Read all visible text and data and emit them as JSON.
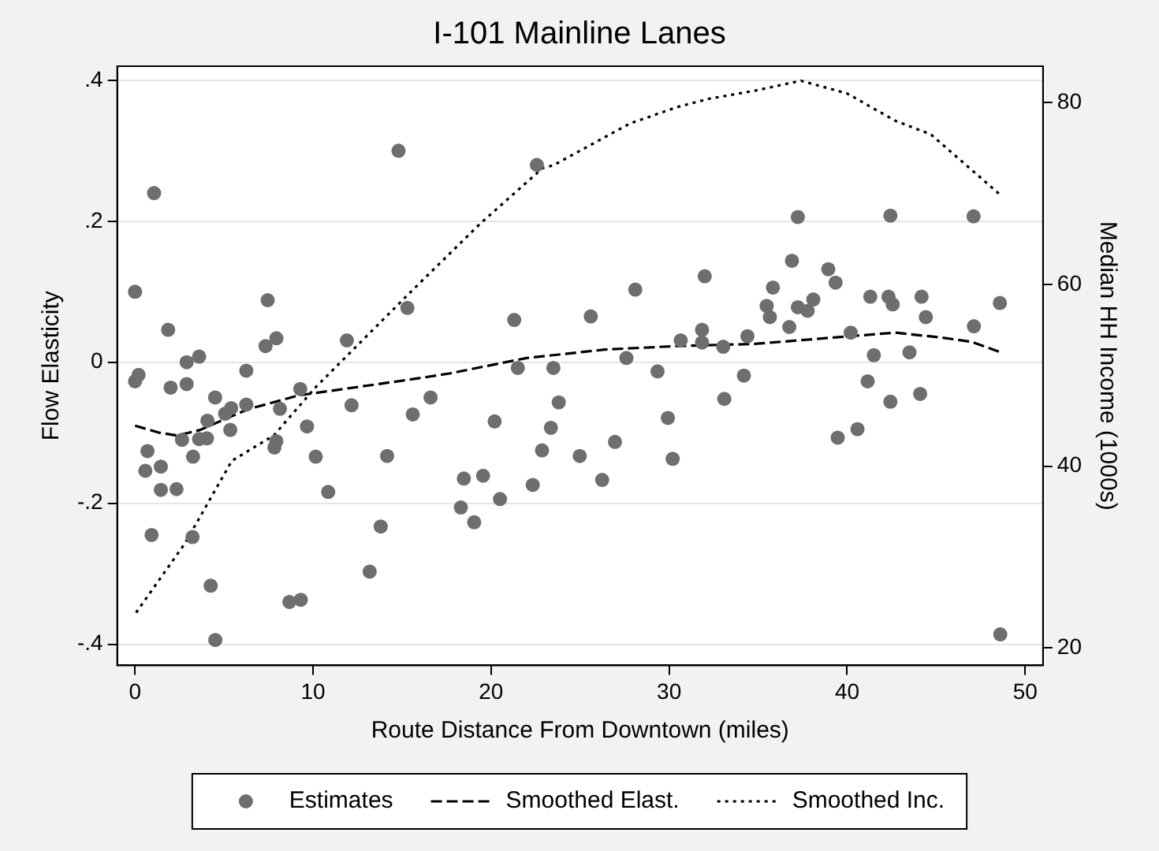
{
  "chart_data": {
    "type": "scatter",
    "title": "I-101 Mainline Lanes",
    "xlabel": "Route Distance From Downtown (miles)",
    "ylabel": "Flow Elasticity",
    "y2label": "Median HH Income (1000s)",
    "xlim": [
      -1,
      51
    ],
    "xticks": [
      0,
      10,
      20,
      30,
      40,
      50
    ],
    "ylim": [
      -0.43,
      0.42
    ],
    "yticks": [
      {
        "value": -0.4,
        "label": "-.4"
      },
      {
        "value": -0.2,
        "label": "-.2"
      },
      0,
      {
        "value": 0.2,
        "label": ".2"
      },
      {
        "value": 0.4,
        "label": ".4"
      }
    ],
    "y2lim": [
      18.1,
      84
    ],
    "y2ticks": [
      20,
      40,
      60,
      80
    ],
    "grid": "y",
    "legend": "bottom",
    "marker": "circle",
    "series": [
      {
        "name": "Estimates",
        "type": "scatter",
        "color": "#6e6e6e",
        "x": [
          14.8,
          1.07,
          0.0,
          7.45,
          1.86,
          11.9,
          7.33,
          7.94,
          3.6,
          2.9,
          0.0,
          0.2,
          2.0,
          2.9,
          6.25,
          9.28,
          4.5,
          5.4,
          5.06,
          6.25,
          8.14,
          12.16,
          15.6,
          4.07,
          9.66,
          5.35,
          2.64,
          3.6,
          4.04,
          7.94,
          7.83,
          0.7,
          3.26,
          10.15,
          14.16,
          0.58,
          1.45,
          1.45,
          2.33,
          10.85,
          13.8,
          0.93,
          3.23,
          13.18,
          4.25,
          8.67,
          9.31,
          4.51,
          22.57,
          15.3,
          21.3,
          25.6,
          28.1,
          32.0,
          30.65,
          31.85,
          31.85,
          27.6,
          21.5,
          23.5,
          29.35,
          16.6,
          23.8,
          20.2,
          23.36,
          29.93,
          22.86,
          24.98,
          26.96,
          30.2,
          18.47,
          19.55,
          26.24,
          22.34,
          20.5,
          18.3,
          19.05,
          37.23,
          42.43,
          36.9,
          38.94,
          39.35,
          35.83,
          35.48,
          35.66,
          37.23,
          37.78,
          38.1,
          41.3,
          42.32,
          42.56,
          36.75,
          34.4,
          33.04,
          40.2,
          41.5,
          34.2,
          41.15,
          33.1,
          42.43,
          40.58,
          39.47,
          47.1,
          44.18,
          44.42,
          48.58,
          47.12,
          43.5,
          44.1,
          48.6
        ],
        "values": [
          0.3,
          0.24,
          0.1,
          0.088,
          0.046,
          0.031,
          0.023,
          0.034,
          0.008,
          0.0,
          -0.027,
          -0.018,
          -0.036,
          -0.031,
          -0.012,
          -0.038,
          -0.05,
          -0.065,
          -0.073,
          -0.06,
          -0.066,
          -0.061,
          -0.074,
          -0.083,
          -0.091,
          -0.096,
          -0.11,
          -0.109,
          -0.108,
          -0.112,
          -0.121,
          -0.126,
          -0.134,
          -0.134,
          -0.133,
          -0.154,
          -0.148,
          -0.181,
          -0.18,
          -0.184,
          -0.233,
          -0.245,
          -0.248,
          -0.297,
          -0.317,
          -0.34,
          -0.337,
          -0.394,
          0.28,
          0.077,
          0.06,
          0.065,
          0.103,
          0.122,
          0.031,
          0.046,
          0.028,
          0.006,
          -0.008,
          -0.008,
          -0.013,
          -0.05,
          -0.057,
          -0.084,
          -0.093,
          -0.079,
          -0.125,
          -0.133,
          -0.113,
          -0.137,
          -0.165,
          -0.161,
          -0.167,
          -0.174,
          -0.194,
          -0.206,
          -0.227,
          0.206,
          0.208,
          0.144,
          0.132,
          0.113,
          0.106,
          0.08,
          0.064,
          0.078,
          0.073,
          0.089,
          0.093,
          0.093,
          0.082,
          0.05,
          0.037,
          0.022,
          0.042,
          0.01,
          -0.019,
          -0.027,
          -0.052,
          -0.056,
          -0.095,
          -0.107,
          0.207,
          0.093,
          0.064,
          0.084,
          0.051,
          0.014,
          -0.045,
          -0.386
        ]
      },
      {
        "name": "Smoothed Elast.",
        "type": "line",
        "color": "#000000",
        "marker": "none",
        "line_style": "dashed",
        "x": [
          0.0,
          1.37,
          2.38,
          3.66,
          6.3,
          9.2,
          15.6,
          17.65,
          22.0,
          26.4,
          30.45,
          34.8,
          39.2,
          42.7,
          45.3,
          47.0,
          48.63
        ],
        "values": [
          -0.09,
          -0.1,
          -0.104,
          -0.096,
          -0.067,
          -0.047,
          -0.024,
          -0.016,
          0.006,
          0.018,
          0.023,
          0.026,
          0.035,
          0.042,
          0.035,
          0.029,
          0.014
        ]
      },
      {
        "name": "Smoothed Inc.",
        "type": "line",
        "axis": "y2",
        "color": "#000000",
        "marker": "none",
        "line_style": "dotted",
        "x": [
          0.06,
          2.8,
          5.44,
          7.8,
          10.1,
          15.6,
          19.4,
          22.9,
          23.5,
          27.8,
          30.45,
          32.2,
          34.8,
          37.4,
          40.0,
          42.7,
          44.7,
          48.63
        ],
        "values": [
          23.9,
          31.5,
          40.6,
          43.4,
          48.6,
          59.4,
          66.7,
          72.8,
          73.1,
          77.7,
          79.5,
          80.4,
          81.3,
          82.4,
          81.0,
          78.0,
          76.5,
          69.8
        ]
      }
    ]
  }
}
